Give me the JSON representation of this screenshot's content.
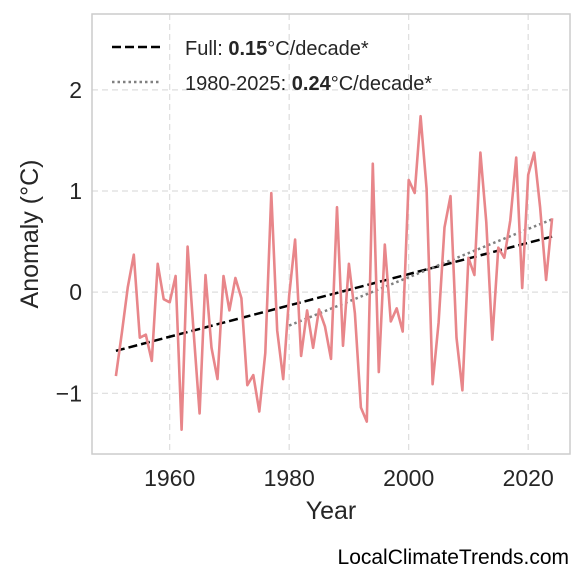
{
  "chart_data": {
    "type": "line",
    "xlabel": "Year",
    "ylabel": "Anomaly (°C)",
    "xlim": [
      1947,
      2027
    ],
    "ylim": [
      -1.6,
      2.75
    ],
    "x_ticks": [
      1960,
      1980,
      2000,
      2020
    ],
    "y_ticks": [
      -1,
      0,
      1,
      2
    ],
    "y_tick_labels": [
      "−1",
      "0",
      "1",
      "2"
    ],
    "grid": true,
    "legend_position": "top-left",
    "colors": {
      "series": "#e8868a",
      "full_trend": "#000000",
      "recent_trend": "#808080"
    },
    "series": [
      {
        "x": [
          1951,
          1952,
          1953,
          1954,
          1955,
          1956,
          1957,
          1958,
          1959,
          1960,
          1961,
          1962,
          1963,
          1964,
          1965,
          1966,
          1967,
          1968,
          1969,
          1970,
          1971,
          1972,
          1973,
          1974,
          1975,
          1976,
          1977,
          1978,
          1979,
          1980,
          1981,
          1982,
          1983,
          1984,
          1985,
          1986,
          1987,
          1988,
          1989,
          1990,
          1991,
          1992,
          1993,
          1994,
          1995,
          1996,
          1997,
          1998,
          1999,
          2000,
          2001,
          2002,
          2003,
          2004,
          2005,
          2006,
          2007,
          2008,
          2009,
          2010,
          2011,
          2012,
          2013,
          2014,
          2015,
          2016,
          2017,
          2018,
          2019,
          2020,
          2021,
          2022,
          2023,
          2024
        ],
        "values": [
          -0.83,
          -0.4,
          0.05,
          0.37,
          -0.45,
          -0.42,
          -0.68,
          0.28,
          -0.07,
          -0.1,
          0.16,
          -1.36,
          0.45,
          -0.39,
          -1.2,
          0.17,
          -0.55,
          -0.86,
          0.16,
          -0.18,
          0.14,
          -0.06,
          -0.92,
          -0.82,
          -1.18,
          -0.6,
          0.98,
          -0.38,
          -0.86,
          -0.03,
          0.52,
          -0.63,
          -0.18,
          -0.55,
          -0.17,
          -0.34,
          -0.66,
          0.84,
          -0.53,
          0.28,
          -0.21,
          -1.14,
          -1.28,
          1.27,
          -0.79,
          0.47,
          -0.29,
          -0.16,
          -0.39,
          1.11,
          0.98,
          1.74,
          1.02,
          -0.91,
          -0.3,
          0.64,
          0.95,
          -0.45,
          -0.97,
          0.34,
          0.17,
          1.38,
          0.69,
          -0.47,
          0.44,
          0.34,
          0.71,
          1.33,
          0.04,
          1.16,
          1.38,
          0.84,
          0.12,
          0.73
        ]
      }
    ],
    "trend_lines": [
      {
        "style": "dashed",
        "x": [
          1951,
          2024
        ],
        "values": [
          -0.58,
          0.55
        ],
        "legend_prefix": "Full: ",
        "legend_value": "0.15",
        "legend_suffix": "°C/decade*"
      },
      {
        "style": "dotted",
        "x": [
          1980,
          2024
        ],
        "values": [
          -0.33,
          0.72
        ],
        "legend_prefix": "1980-2025: ",
        "legend_value": "0.24",
        "legend_suffix": "°C/decade*"
      }
    ]
  },
  "credit": "LocalClimateTrends.com"
}
